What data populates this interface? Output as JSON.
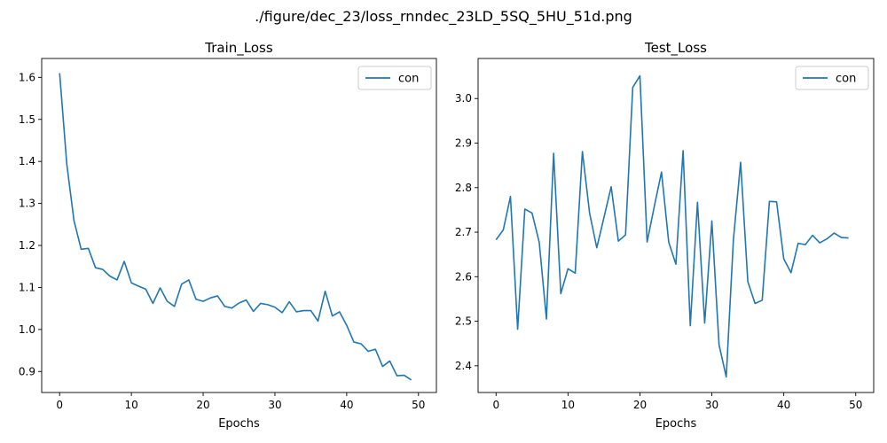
{
  "figure": {
    "suptitle": "./figure/dec_23/loss_rnndec_23LD_5SQ_5HU_51d.png"
  },
  "chart_data": [
    {
      "type": "line",
      "title": "Train_Loss",
      "xlabel": "Epochs",
      "ylabel": "",
      "xlim": [
        -2.5,
        52.5
      ],
      "ylim": [
        0.85,
        1.645
      ],
      "xticks": [
        0,
        10,
        20,
        30,
        40,
        50
      ],
      "yticks": [
        0.9,
        1.0,
        1.1,
        1.2,
        1.3,
        1.4,
        1.5,
        1.6
      ],
      "legend": "upper right",
      "grid": false,
      "series": [
        {
          "name": "con",
          "color": "#1f77b4",
          "x": [
            0,
            1,
            2,
            3,
            4,
            5,
            6,
            7,
            8,
            9,
            10,
            11,
            12,
            13,
            14,
            15,
            16,
            17,
            18,
            19,
            20,
            21,
            22,
            23,
            24,
            25,
            26,
            27,
            28,
            29,
            30,
            31,
            32,
            33,
            34,
            35,
            36,
            37,
            38,
            39,
            40,
            41,
            42,
            43,
            44,
            45,
            46,
            47,
            48,
            49
          ],
          "values": [
            1.61,
            1.393,
            1.259,
            1.191,
            1.193,
            1.147,
            1.143,
            1.127,
            1.118,
            1.162,
            1.111,
            1.103,
            1.096,
            1.062,
            1.099,
            1.067,
            1.055,
            1.108,
            1.118,
            1.072,
            1.067,
            1.075,
            1.08,
            1.055,
            1.051,
            1.063,
            1.07,
            1.043,
            1.062,
            1.059,
            1.053,
            1.04,
            1.066,
            1.042,
            1.045,
            1.045,
            1.02,
            1.091,
            1.032,
            1.042,
            1.01,
            0.97,
            0.966,
            0.948,
            0.953,
            0.912,
            0.925,
            0.89,
            0.891,
            0.88
          ]
        }
      ]
    },
    {
      "type": "line",
      "title": "Test_Loss",
      "xlabel": "Epochs",
      "ylabel": "",
      "xlim": [
        -2.5,
        52.5
      ],
      "ylim": [
        2.34,
        3.09
      ],
      "xticks": [
        0,
        10,
        20,
        30,
        40,
        50
      ],
      "yticks": [
        2.4,
        2.5,
        2.6,
        2.7,
        2.8,
        2.9,
        3.0
      ],
      "legend": "upper right",
      "grid": false,
      "series": [
        {
          "name": "con",
          "color": "#1f77b4",
          "x": [
            0,
            1,
            2,
            3,
            4,
            5,
            6,
            7,
            8,
            9,
            10,
            11,
            12,
            13,
            14,
            15,
            16,
            17,
            18,
            19,
            20,
            21,
            22,
            23,
            24,
            25,
            26,
            27,
            28,
            29,
            30,
            31,
            32,
            33,
            34,
            35,
            36,
            37,
            38,
            39,
            40,
            41,
            42,
            43,
            44,
            45,
            46,
            47,
            48,
            49
          ],
          "values": [
            2.683,
            2.705,
            2.78,
            2.482,
            2.752,
            2.743,
            2.677,
            2.505,
            2.877,
            2.562,
            2.618,
            2.608,
            2.881,
            2.743,
            2.665,
            2.733,
            2.802,
            2.68,
            2.694,
            3.025,
            3.051,
            2.678,
            2.758,
            2.835,
            2.678,
            2.628,
            2.883,
            2.49,
            2.767,
            2.496,
            2.725,
            2.447,
            2.375,
            2.684,
            2.857,
            2.589,
            2.54,
            2.547,
            2.769,
            2.768,
            2.64,
            2.609,
            2.675,
            2.672,
            2.693,
            2.676,
            2.685,
            2.698,
            2.688,
            2.687
          ]
        }
      ]
    }
  ]
}
